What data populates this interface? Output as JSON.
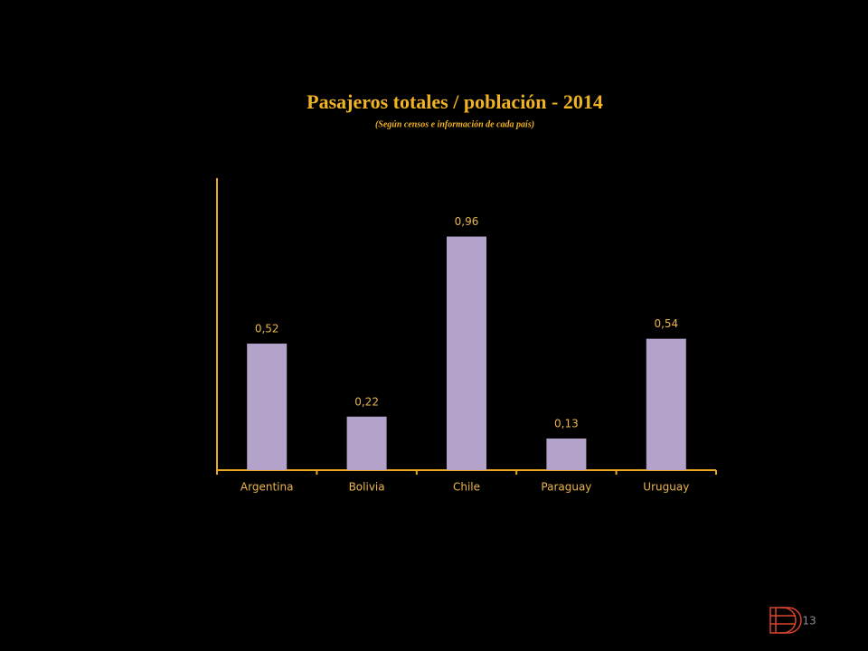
{
  "chart_data": {
    "type": "bar",
    "title": "Pasajeros totales / población - 2014",
    "subtitle": "(Según censos e información de cada país)",
    "categories": [
      "Argentina",
      "Bolivia",
      "Chile",
      "Paraguay",
      "Uruguay"
    ],
    "values": [
      0.52,
      0.22,
      0.96,
      0.13,
      0.54
    ],
    "value_labels": [
      "0,52",
      "0,22",
      "0,96",
      "0,13",
      "0,54"
    ],
    "color": "#b3a2c9",
    "ylim": [
      0,
      1.2
    ]
  },
  "page_number": "13"
}
